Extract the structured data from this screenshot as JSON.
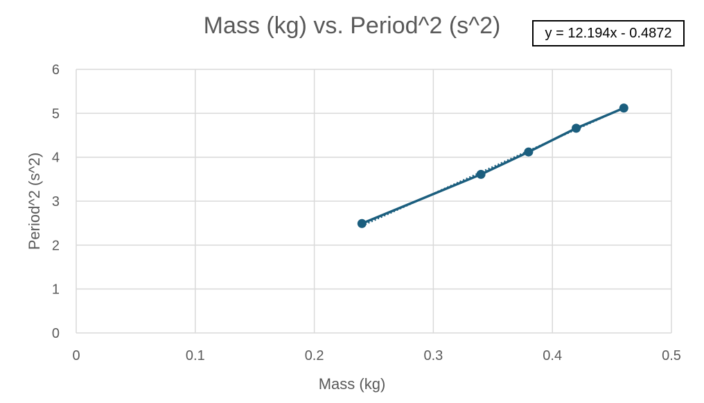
{
  "chart_data": {
    "type": "scatter",
    "title": "Mass (kg) vs. Period^2 (s^2)",
    "xlabel": "Mass (kg)",
    "ylabel": "Period^2 (s^2)",
    "xlim": [
      0,
      0.5
    ],
    "ylim": [
      0,
      6
    ],
    "xticks": [
      "0",
      "0.1",
      "0.2",
      "0.3",
      "0.4",
      "0.5"
    ],
    "yticks": [
      "0",
      "1",
      "2",
      "3",
      "4",
      "5",
      "6"
    ],
    "grid": true,
    "legend": "none",
    "series": [
      {
        "x": [
          0.24,
          0.34,
          0.38,
          0.42,
          0.46
        ],
        "y": [
          2.49,
          3.61,
          4.12,
          4.66,
          5.12
        ],
        "style": "line-with-markers",
        "color": "#1b5e7e"
      }
    ],
    "trendline": {
      "type": "linear",
      "slope": 12.194,
      "intercept": -0.4872,
      "style": "dotted",
      "equation_label": "y = 12.194x - 0.4872"
    }
  }
}
